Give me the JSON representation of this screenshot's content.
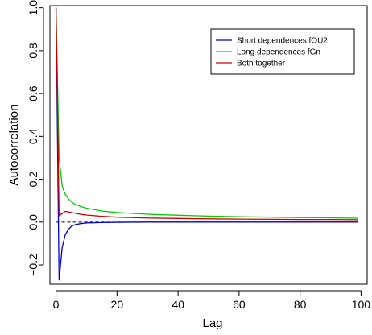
{
  "chart_data": {
    "type": "line",
    "xlabel": "Lag",
    "ylabel": "Autocorrelation",
    "xlim": [
      -2,
      102
    ],
    "ylim": [
      -0.29,
      1.01
    ],
    "x_ticks": [
      0,
      20,
      40,
      60,
      80,
      100
    ],
    "y_ticks": [
      -0.2,
      0.0,
      0.2,
      0.4,
      0.6,
      0.8,
      1.0
    ],
    "x_tick_labels": [
      "0",
      "20",
      "40",
      "60",
      "80",
      "100"
    ],
    "y_tick_labels": [
      "−0.2",
      "0.0",
      "0.2",
      "0.4",
      "0.6",
      "0.8",
      "1.0"
    ],
    "grid": false,
    "reference_line": {
      "y": 0,
      "style": "dashed",
      "color": "#000000"
    },
    "legend": {
      "placement": "top-right"
    },
    "series": [
      {
        "name": "Short dependences fOU2",
        "color": "#0000cd",
        "x": [
          0,
          1,
          2,
          3,
          4,
          5,
          6,
          8,
          10,
          15,
          20,
          30,
          40,
          60,
          80,
          99
        ],
        "y": [
          1.0,
          -0.27,
          -0.12,
          -0.06,
          -0.035,
          -0.02,
          -0.013,
          -0.007,
          -0.004,
          -0.002,
          -0.001,
          0.0,
          0.0,
          0.0,
          0.0,
          0.0
        ]
      },
      {
        "name": "Long dependences fGn",
        "color": "#00cd00",
        "x": [
          0,
          1,
          2,
          3,
          4,
          5,
          6,
          8,
          10,
          15,
          20,
          30,
          40,
          50,
          60,
          70,
          80,
          90,
          99
        ],
        "y": [
          1.0,
          0.3,
          0.17,
          0.13,
          0.11,
          0.095,
          0.085,
          0.073,
          0.065,
          0.052,
          0.045,
          0.037,
          0.032,
          0.028,
          0.025,
          0.023,
          0.021,
          0.02,
          0.018
        ]
      },
      {
        "name": "Both together",
        "color": "#cd0000",
        "x": [
          0,
          1,
          2,
          3,
          4,
          5,
          6,
          8,
          10,
          15,
          20,
          30,
          40,
          50,
          60,
          70,
          80,
          90,
          99
        ],
        "y": [
          1.0,
          0.03,
          0.04,
          0.05,
          0.048,
          0.045,
          0.042,
          0.037,
          0.033,
          0.027,
          0.023,
          0.019,
          0.017,
          0.015,
          0.014,
          0.013,
          0.012,
          0.012,
          0.011
        ]
      }
    ]
  }
}
